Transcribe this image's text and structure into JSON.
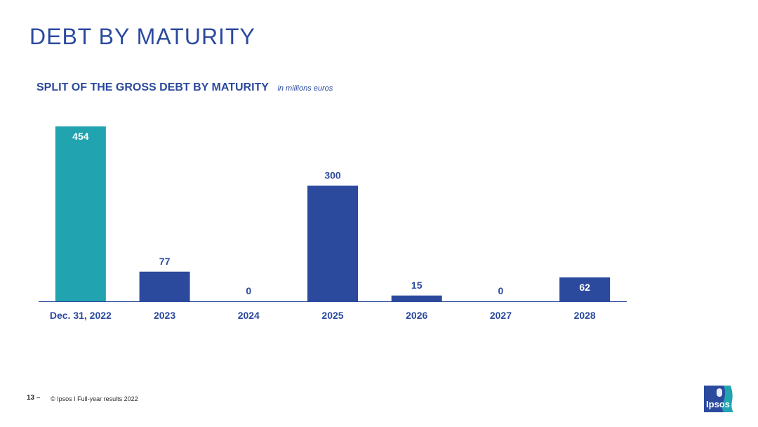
{
  "page": {
    "title": "DEBT BY MATURITY"
  },
  "chart_header": {
    "title": "SPLIT OF THE GROSS DEBT BY MATURITY",
    "unit": "in millions euros"
  },
  "footer": {
    "page_number": "13 –",
    "text": "© Ipsos I Full-year results 2022"
  },
  "logo": {
    "name": "ipsos-logo",
    "text": "Ipsos"
  },
  "colors": {
    "accent_teal": "#21a3b0",
    "brand_blue": "#2b4a9e"
  },
  "chart_data": {
    "type": "bar",
    "title": "SPLIT OF THE GROSS DEBT BY MATURITY",
    "subtitle": "in millions euros",
    "categories": [
      "Dec. 31, 2022",
      "2023",
      "2024",
      "2025",
      "2026",
      "2027",
      "2028"
    ],
    "values": [
      454,
      77,
      0,
      300,
      15,
      0,
      62
    ],
    "data_labels": [
      "454",
      "77",
      "0",
      "300",
      "15",
      "0",
      "62"
    ],
    "bar_colors": [
      "#21a3b0",
      "#2b4a9e",
      "#2b4a9e",
      "#2b4a9e",
      "#2b4a9e",
      "#2b4a9e",
      "#2b4a9e"
    ],
    "label_inside": [
      true,
      false,
      false,
      false,
      false,
      false,
      true
    ],
    "xlabel": "",
    "ylabel": "",
    "ylim": [
      0,
      454
    ],
    "grid": false,
    "legend": false
  }
}
